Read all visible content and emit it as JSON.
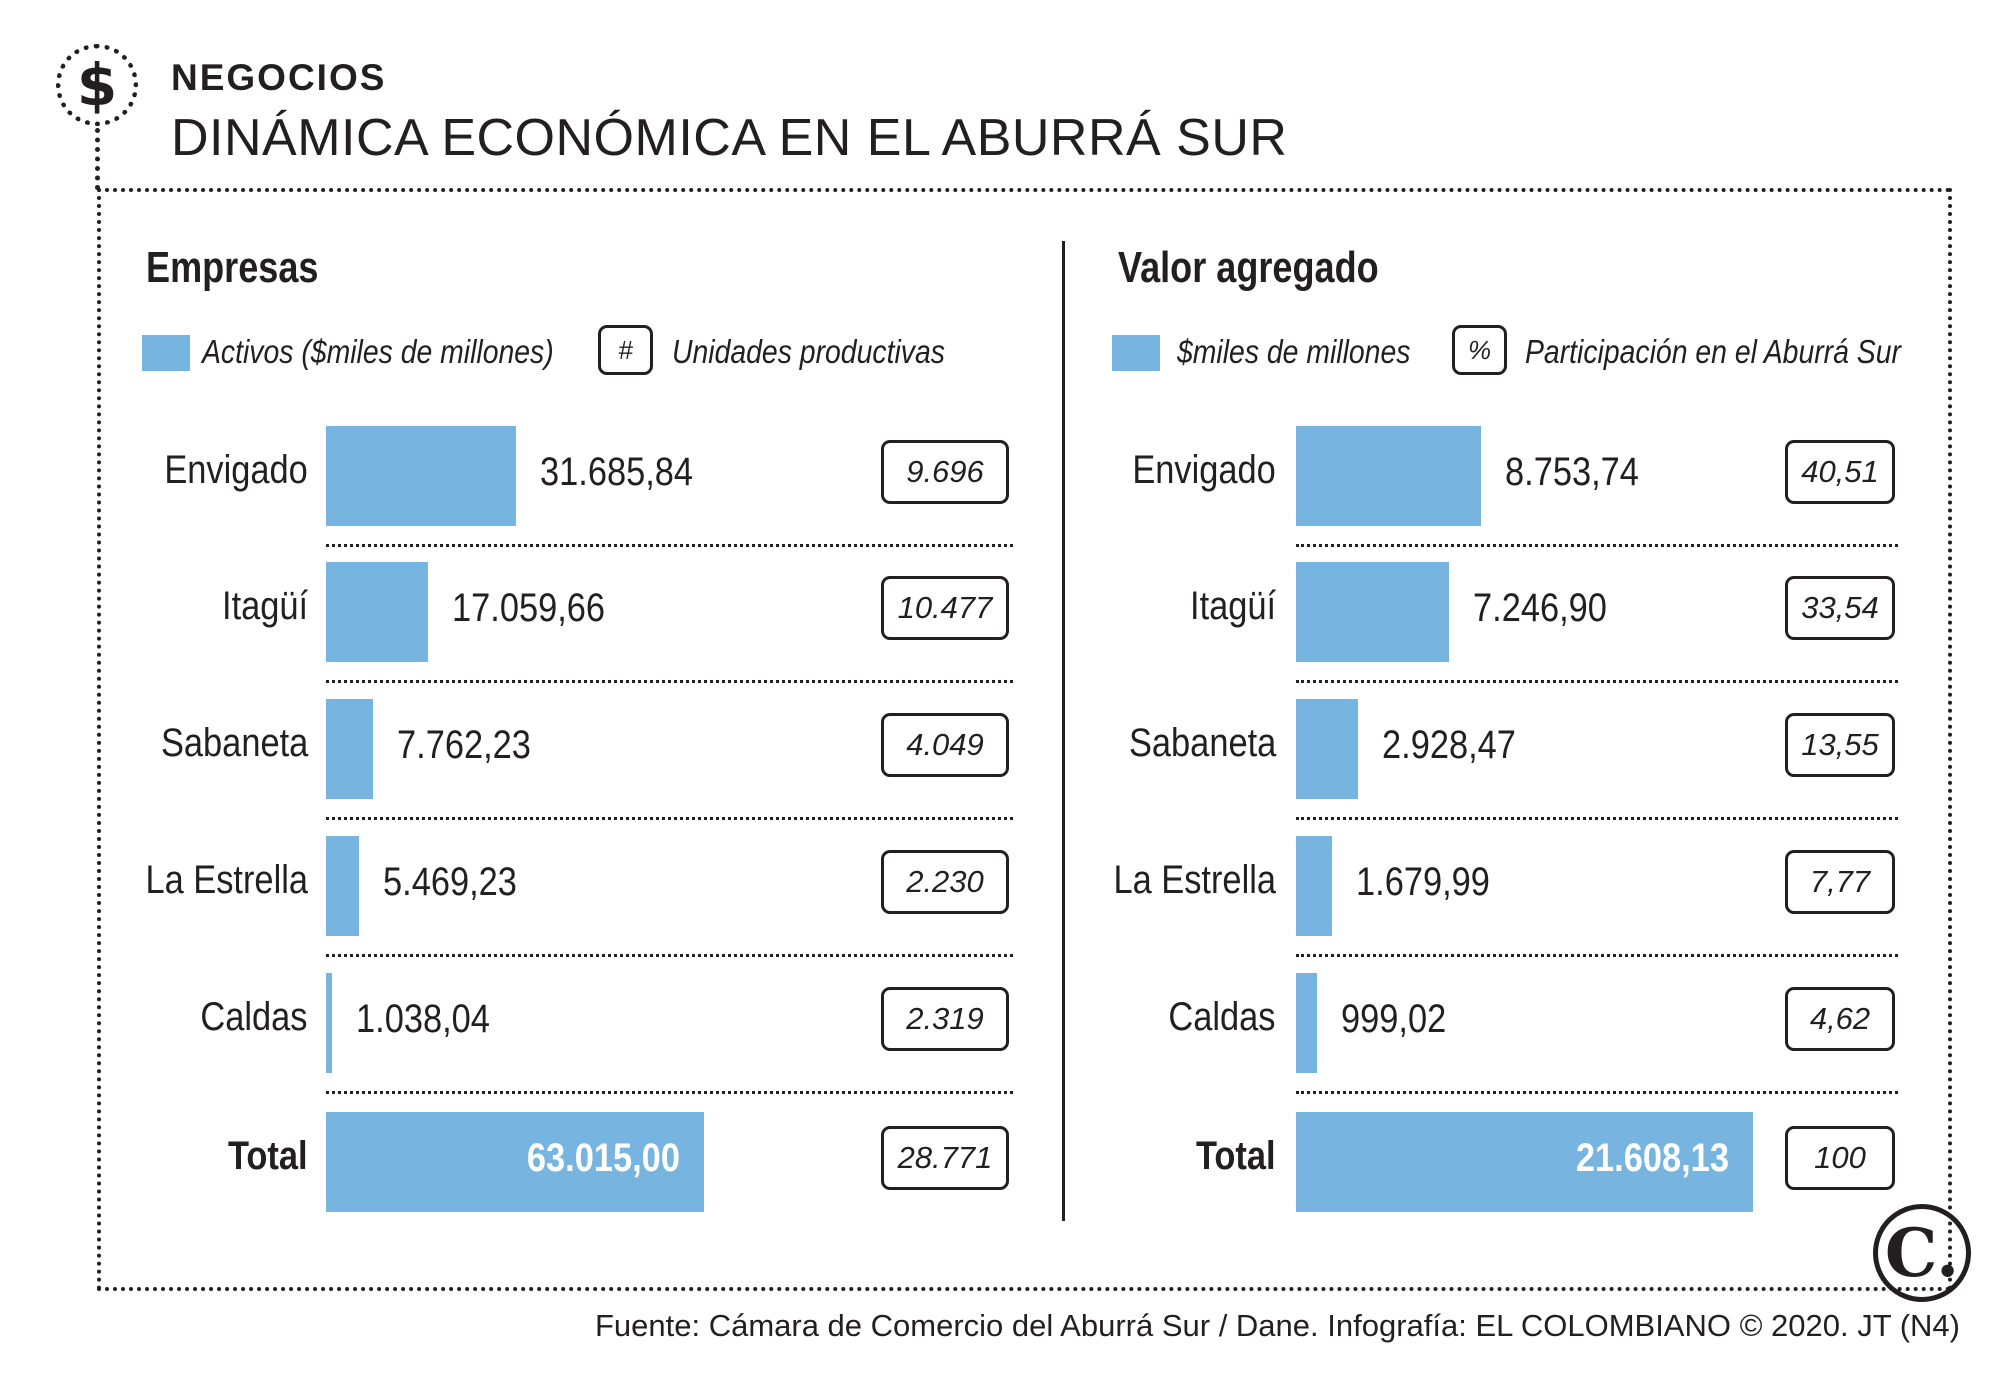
{
  "header": {
    "icon": "dollar-icon",
    "icon_glyph": "$",
    "section": "NEGOCIOS",
    "title": "DINÁMICA ECONÓMICA EN EL ABURRÁ SUR"
  },
  "panels": {
    "left": {
      "title": "Empresas",
      "legend_bar": "Activos ($miles de millones)",
      "legend_box_symbol": "#",
      "legend_box_label": "Unidades productivas"
    },
    "right": {
      "title": "Valor agregado",
      "legend_bar": "$miles de millones",
      "legend_box_symbol": "%",
      "legend_box_label": "Participación en el Aburrá Sur"
    }
  },
  "chart_data": [
    {
      "type": "bar",
      "title": "Empresas",
      "orientation": "horizontal",
      "categories": [
        "Envigado",
        "Itagüí",
        "Sabaneta",
        "La Estrella",
        "Caldas"
      ],
      "series": [
        {
          "name": "Activos ($miles de millones)",
          "values": [
            31685.84,
            17059.66,
            7762.23,
            5469.23,
            1038.04
          ],
          "labels": [
            "31.685,84",
            "17.059,66",
            "7.762,23",
            "5.469,23",
            "1.038,04"
          ]
        },
        {
          "name": "Unidades productivas",
          "values": [
            9696,
            10477,
            4049,
            2230,
            2319
          ],
          "labels": [
            "9.696",
            "10.477",
            "4.049",
            "2.230",
            "2.319"
          ]
        }
      ],
      "total": {
        "label": "Total",
        "bar_value": 63015.0,
        "bar_label": "63.015,00",
        "box_label": "28.771"
      },
      "xlim": [
        0,
        100000
      ],
      "color": "#77b5e0"
    },
    {
      "type": "bar",
      "title": "Valor agregado",
      "orientation": "horizontal",
      "categories": [
        "Envigado",
        "Itagüí",
        "Sabaneta",
        "La Estrella",
        "Caldas"
      ],
      "series": [
        {
          "name": "$miles de millones",
          "values": [
            8753.74,
            7246.9,
            2928.47,
            1679.99,
            999.02
          ],
          "labels": [
            "8.753,74",
            "7.246,90",
            "2.928,47",
            "1.679,99",
            "999,02"
          ]
        },
        {
          "name": "Participación en el Aburrá Sur",
          "values": [
            40.51,
            33.54,
            13.55,
            7.77,
            4.62
          ],
          "labels": [
            "40,51",
            "33,54",
            "13,55",
            "7,77",
            "4,62"
          ]
        }
      ],
      "total": {
        "label": "Total",
        "bar_value": 21608.13,
        "bar_label": "21.608,13",
        "box_label": "100"
      },
      "xlim": [
        0,
        26000
      ],
      "color": "#77b5e0"
    }
  ],
  "logo": {
    "icon": "el-colombiano-logo",
    "glyph": "C."
  },
  "footer": "Fuente: Cámara de Comercio del Aburrá Sur / Dane. Infografía: EL COLOMBIANO © 2020. JT (N4)"
}
